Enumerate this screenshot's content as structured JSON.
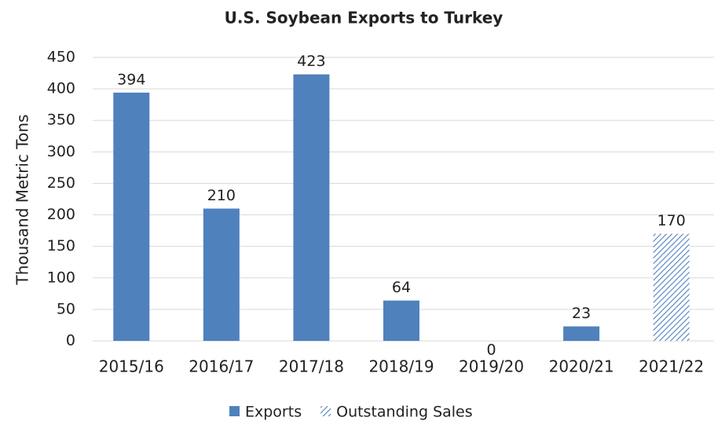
{
  "chart_data": {
    "type": "bar",
    "title": "U.S. Soybean Exports to Turkey",
    "y_label": "Thousand Metric Tons",
    "categories": [
      "2015/16",
      "2016/17",
      "2017/18",
      "2018/19",
      "2019/20",
      "2020/21",
      "2021/22"
    ],
    "series": [
      {
        "name": "Exports",
        "color": "#4f81bd",
        "hatch": false,
        "values": [
          394,
          210,
          423,
          64,
          0,
          23,
          null
        ]
      },
      {
        "name": "Outstanding Sales",
        "color": "#4f81bd",
        "hatch": true,
        "values": [
          null,
          null,
          null,
          null,
          null,
          null,
          170
        ]
      }
    ],
    "ylim": [
      0,
      450
    ],
    "yticks": [
      0,
      50,
      100,
      150,
      200,
      250,
      300,
      350,
      400,
      450
    ],
    "grid": true,
    "legend": "bottom"
  }
}
